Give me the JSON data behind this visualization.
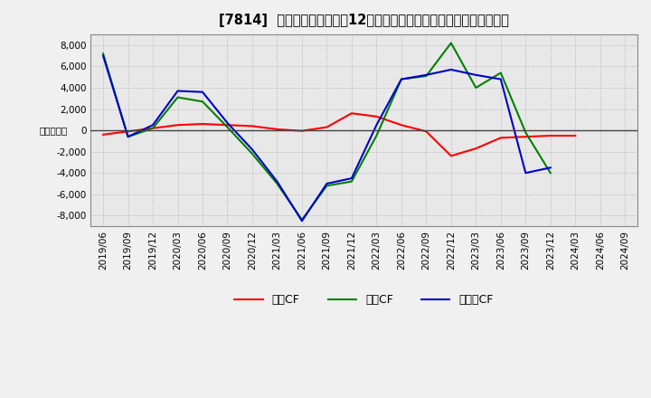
{
  "title": "[7814]  キャッシュフローの12か月移動合計の対前年同期増減額の推移",
  "ylabel": "（百万円）",
  "x_labels": [
    "2019/06",
    "2019/09",
    "2019/12",
    "2020/03",
    "2020/06",
    "2020/09",
    "2020/12",
    "2021/03",
    "2021/06",
    "2021/09",
    "2021/12",
    "2022/03",
    "2022/06",
    "2022/09",
    "2022/12",
    "2023/03",
    "2023/06",
    "2023/09",
    "2023/12",
    "2024/03",
    "2024/06",
    "2024/09"
  ],
  "eigyo_cf": [
    -400,
    -100,
    200,
    500,
    600,
    500,
    400,
    100,
    -50,
    300,
    1600,
    1300,
    500,
    -100,
    -2400,
    -1700,
    -700,
    -600,
    -500,
    -500,
    null,
    null
  ],
  "toshi_cf": [
    7200,
    -600,
    200,
    3100,
    2700,
    300,
    -2200,
    -5000,
    -8400,
    -5200,
    -4800,
    -500,
    4800,
    5100,
    8200,
    4000,
    5400,
    -200,
    -4000,
    null,
    null,
    null
  ],
  "free_cf": [
    7000,
    -600,
    500,
    3700,
    3600,
    700,
    -1800,
    -4800,
    -8500,
    -5000,
    -4500,
    500,
    4800,
    5200,
    5700,
    5200,
    4800,
    -4000,
    -3500,
    null,
    null,
    null
  ],
  "ylim": [
    -9000,
    9000
  ],
  "yticks": [
    -8000,
    -6000,
    -4000,
    -2000,
    0,
    2000,
    4000,
    6000,
    8000
  ],
  "legend_labels": [
    "営業CF",
    "投資CF",
    "フリーCF"
  ],
  "line_colors": [
    "#ff0000",
    "#008000",
    "#0000cd"
  ],
  "background_color": "#f0f0f0",
  "plot_bg_color": "#e8e8e8",
  "grid_color": "#aaaaaa",
  "title_fontsize": 10.5,
  "axis_fontsize": 7.5,
  "legend_fontsize": 9
}
